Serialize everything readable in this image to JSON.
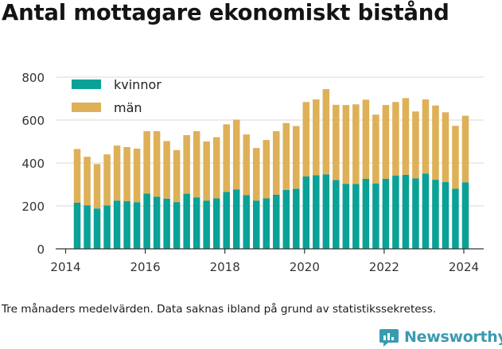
{
  "title": "Antal mottagare ekonomiskt bistånd",
  "caption": "Tre månaders medelvärden. Data saknas ibland på grund av statistikssekretess.",
  "brand": {
    "name": "Newsworthy",
    "icon": "newsworthy-logo-icon",
    "color": "#3a9bb0"
  },
  "colors": {
    "kvinnor": "#0aa196",
    "man": "#deb057",
    "grid": "#d9d9d9",
    "axis": "#333333"
  },
  "chart_data": {
    "type": "bar",
    "stacked": true,
    "title": "",
    "xlabel": "",
    "ylabel": "",
    "ylim": [
      0,
      800
    ],
    "yticks": [
      0,
      200,
      400,
      600,
      800
    ],
    "ytick_labels": [
      "0",
      "200",
      "400",
      "600",
      "800"
    ],
    "xlim": [
      2013.75,
      2024.5
    ],
    "xticks": [
      2014,
      2016,
      2018,
      2020,
      2022,
      2024
    ],
    "xtick_labels": [
      "2014",
      "2016",
      "2018",
      "2020",
      "2022",
      "2024"
    ],
    "grid": "horizontal",
    "legend": "top-left",
    "x": [
      2014.29,
      2014.54,
      2014.79,
      2015.04,
      2015.29,
      2015.54,
      2015.79,
      2016.04,
      2016.29,
      2016.54,
      2016.79,
      2017.04,
      2017.29,
      2017.54,
      2017.79,
      2018.04,
      2018.29,
      2018.54,
      2018.79,
      2019.04,
      2019.29,
      2019.54,
      2019.79,
      2020.04,
      2020.29,
      2020.54,
      2020.79,
      2021.04,
      2021.29,
      2021.54,
      2021.79,
      2022.04,
      2022.29,
      2022.54,
      2022.79,
      2023.04,
      2023.29,
      2023.54,
      2023.79,
      2024.04
    ],
    "series": [
      {
        "name": "kvinnor",
        "color": "#0aa196",
        "values": [
          215,
          203,
          188,
          202,
          225,
          222,
          217,
          258,
          243,
          234,
          218,
          257,
          240,
          225,
          235,
          265,
          277,
          250,
          225,
          235,
          252,
          274,
          280,
          337,
          343,
          347,
          321,
          303,
          302,
          326,
          305,
          326,
          342,
          345,
          328,
          350,
          322,
          311,
          280,
          310
        ]
      },
      {
        "name": "män",
        "color": "#deb057",
        "values": [
          250,
          226,
          207,
          238,
          256,
          252,
          250,
          290,
          305,
          268,
          242,
          273,
          308,
          275,
          285,
          315,
          325,
          283,
          245,
          272,
          296,
          312,
          292,
          347,
          353,
          397,
          350,
          367,
          371,
          369,
          320,
          344,
          342,
          357,
          312,
          346,
          346,
          325,
          293,
          310
        ]
      }
    ]
  }
}
